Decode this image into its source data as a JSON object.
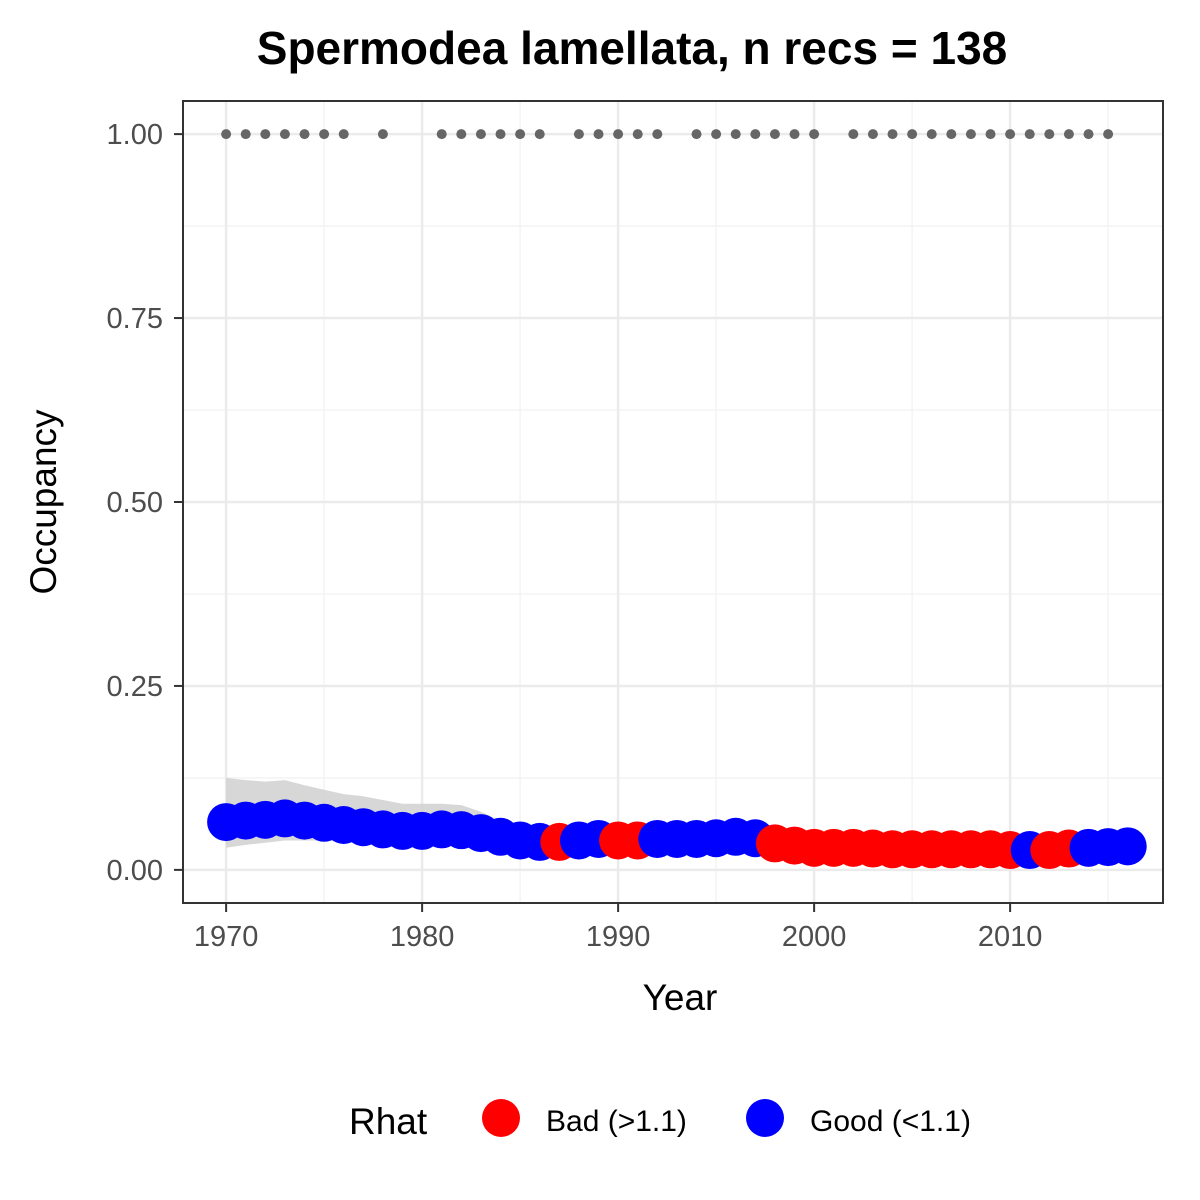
{
  "chart_data": {
    "type": "scatter",
    "title": "Spermodea lamellata, n recs = 138",
    "xlabel": "Year",
    "ylabel": "Occupancy",
    "xlim": [
      1967.8,
      2017.8
    ],
    "ylim": [
      -0.045,
      1.045
    ],
    "x_ticks": [
      1970,
      1980,
      1990,
      2000,
      2010
    ],
    "y_ticks": [
      0.0,
      0.25,
      0.5,
      0.75,
      1.0
    ],
    "y_tick_labels": [
      "0.00",
      "0.25",
      "0.50",
      "0.75",
      "1.00"
    ],
    "grid": true,
    "legend": {
      "title": "Rhat",
      "position": "bottom",
      "entries": [
        {
          "label": "Bad (>1.1)",
          "color": "#ff0000"
        },
        {
          "label": "Good (<1.1)",
          "color": "#0000ff"
        }
      ]
    },
    "colors": {
      "bad": "#ff0000",
      "good": "#0000ff",
      "ribbon": "#d3d3d3",
      "record_points": "#666666"
    },
    "occupancy": {
      "x": [
        1970,
        1971,
        1972,
        1973,
        1974,
        1975,
        1976,
        1977,
        1978,
        1979,
        1980,
        1981,
        1982,
        1983,
        1984,
        1985,
        1986,
        1987,
        1988,
        1989,
        1990,
        1991,
        1992,
        1993,
        1994,
        1995,
        1996,
        1997,
        1998,
        1999,
        2000,
        2001,
        2002,
        2003,
        2004,
        2005,
        2006,
        2007,
        2008,
        2009,
        2010,
        2011,
        2012,
        2013,
        2014,
        2015,
        2016
      ],
      "y": [
        0.065,
        0.067,
        0.068,
        0.07,
        0.067,
        0.064,
        0.061,
        0.058,
        0.055,
        0.053,
        0.053,
        0.055,
        0.054,
        0.05,
        0.045,
        0.04,
        0.038,
        0.038,
        0.04,
        0.042,
        0.04,
        0.04,
        0.042,
        0.042,
        0.042,
        0.043,
        0.045,
        0.043,
        0.036,
        0.033,
        0.03,
        0.03,
        0.03,
        0.029,
        0.028,
        0.028,
        0.028,
        0.028,
        0.028,
        0.028,
        0.027,
        0.027,
        0.027,
        0.029,
        0.03,
        0.031,
        0.032
      ],
      "rhat": [
        "good",
        "good",
        "good",
        "good",
        "good",
        "good",
        "good",
        "good",
        "good",
        "good",
        "good",
        "good",
        "good",
        "good",
        "good",
        "good",
        "good",
        "bad",
        "good",
        "good",
        "bad",
        "bad",
        "good",
        "good",
        "good",
        "good",
        "good",
        "good",
        "bad",
        "bad",
        "bad",
        "bad",
        "bad",
        "bad",
        "bad",
        "bad",
        "bad",
        "bad",
        "bad",
        "bad",
        "bad",
        "good",
        "bad",
        "bad",
        "good",
        "good",
        "good"
      ],
      "lower": [
        0.03,
        0.034,
        0.037,
        0.04,
        0.04,
        0.04,
        0.039,
        0.037,
        0.035,
        0.034,
        0.034,
        0.035,
        0.035,
        0.032,
        0.028,
        0.024,
        0.022,
        0.022,
        0.023,
        0.025,
        0.024,
        0.024,
        0.025,
        0.026,
        0.026,
        0.026,
        0.027,
        0.026,
        0.022,
        0.02,
        0.018,
        0.018,
        0.018,
        0.018,
        0.017,
        0.017,
        0.017,
        0.017,
        0.017,
        0.017,
        0.016,
        0.016,
        0.016,
        0.017,
        0.018,
        0.019,
        0.02
      ],
      "upper": [
        0.125,
        0.122,
        0.12,
        0.122,
        0.115,
        0.109,
        0.103,
        0.1,
        0.095,
        0.09,
        0.09,
        0.09,
        0.088,
        0.079,
        0.067,
        0.059,
        0.055,
        0.056,
        0.058,
        0.06,
        0.058,
        0.058,
        0.061,
        0.061,
        0.062,
        0.063,
        0.066,
        0.063,
        0.052,
        0.048,
        0.044,
        0.043,
        0.043,
        0.042,
        0.041,
        0.041,
        0.041,
        0.041,
        0.041,
        0.041,
        0.04,
        0.04,
        0.04,
        0.043,
        0.045,
        0.047,
        0.05
      ]
    },
    "records": {
      "y": 1.0,
      "x": [
        1970,
        1971,
        1972,
        1973,
        1974,
        1975,
        1976,
        1978,
        1981,
        1982,
        1983,
        1984,
        1985,
        1986,
        1988,
        1989,
        1990,
        1991,
        1992,
        1994,
        1995,
        1996,
        1997,
        1998,
        1999,
        2000,
        2002,
        2003,
        2004,
        2005,
        2006,
        2007,
        2008,
        2009,
        2010,
        2011,
        2012,
        2013,
        2014,
        2015
      ]
    }
  }
}
